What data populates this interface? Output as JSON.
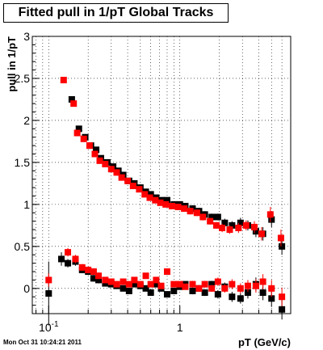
{
  "title": "Fitted pull in 1/pT  Global Tracks",
  "timestamp": "Mon Oct 31 10:24:21 2011",
  "chart_data": {
    "type": "scatter",
    "xlabel": "pT (GeV/c)",
    "ylabel": "pull in 1/pT",
    "xscale": "log",
    "xlim": [
      0.075,
      7.0
    ],
    "ylim": [
      -0.3,
      3.0
    ],
    "grid": true,
    "x_tick_labels": [
      {
        "value": 0.1,
        "base": "10",
        "exp": "-1"
      },
      {
        "value": 1,
        "base": "1",
        "exp": ""
      }
    ],
    "y_ticks": [
      0,
      0.5,
      1,
      1.5,
      2,
      2.5,
      3
    ],
    "y_tick_labels": [
      "0",
      "0.5",
      "1",
      "1.5",
      "2",
      "2.5",
      "3"
    ],
    "series": [
      {
        "color": "#000000",
        "sigma_points": [
          {
            "x": 0.15,
            "y": 2.25,
            "e": 0.03
          },
          {
            "x": 0.17,
            "y": 1.9,
            "e": 0.03
          },
          {
            "x": 0.19,
            "y": 1.8,
            "e": 0.03
          },
          {
            "x": 0.21,
            "y": 1.7,
            "e": 0.03
          },
          {
            "x": 0.23,
            "y": 1.65,
            "e": 0.03
          },
          {
            "x": 0.25,
            "y": 1.55,
            "e": 0.03
          },
          {
            "x": 0.28,
            "y": 1.5,
            "e": 0.03
          },
          {
            "x": 0.31,
            "y": 1.45,
            "e": 0.03
          },
          {
            "x": 0.34,
            "y": 1.4,
            "e": 0.03
          },
          {
            "x": 0.37,
            "y": 1.35,
            "e": 0.03
          },
          {
            "x": 0.41,
            "y": 1.28,
            "e": 0.03
          },
          {
            "x": 0.45,
            "y": 1.25,
            "e": 0.03
          },
          {
            "x": 0.5,
            "y": 1.2,
            "e": 0.03
          },
          {
            "x": 0.55,
            "y": 1.15,
            "e": 0.03
          },
          {
            "x": 0.6,
            "y": 1.12,
            "e": 0.03
          },
          {
            "x": 0.66,
            "y": 1.08,
            "e": 0.03
          },
          {
            "x": 0.72,
            "y": 1.05,
            "e": 0.03
          },
          {
            "x": 0.8,
            "y": 1.05,
            "e": 0.03
          },
          {
            "x": 0.9,
            "y": 1.0,
            "e": 0.03
          },
          {
            "x": 1.0,
            "y": 1.0,
            "e": 0.03
          },
          {
            "x": 1.1,
            "y": 0.98,
            "e": 0.03
          },
          {
            "x": 1.25,
            "y": 0.95,
            "e": 0.04
          },
          {
            "x": 1.4,
            "y": 0.92,
            "e": 0.04
          },
          {
            "x": 1.55,
            "y": 0.88,
            "e": 0.04
          },
          {
            "x": 1.75,
            "y": 0.85,
            "e": 0.04
          },
          {
            "x": 1.95,
            "y": 0.85,
            "e": 0.04
          },
          {
            "x": 2.2,
            "y": 0.78,
            "e": 0.05
          },
          {
            "x": 2.5,
            "y": 0.75,
            "e": 0.05
          },
          {
            "x": 2.9,
            "y": 0.78,
            "e": 0.06
          },
          {
            "x": 3.3,
            "y": 0.75,
            "e": 0.06
          },
          {
            "x": 3.8,
            "y": 0.68,
            "e": 0.07
          },
          {
            "x": 4.3,
            "y": 0.65,
            "e": 0.08
          },
          {
            "x": 5.0,
            "y": 0.82,
            "e": 0.09
          },
          {
            "x": 6.0,
            "y": 0.5,
            "e": 0.1
          }
        ],
        "mean_points": [
          {
            "x": 0.1,
            "y": -0.06,
            "e": 0.38
          },
          {
            "x": 0.125,
            "y": 0.35,
            "e": 0.08
          },
          {
            "x": 0.14,
            "y": 0.3,
            "e": 0.05
          },
          {
            "x": 0.16,
            "y": 0.32,
            "e": 0.05
          },
          {
            "x": 0.18,
            "y": 0.22,
            "e": 0.04
          },
          {
            "x": 0.2,
            "y": 0.2,
            "e": 0.04
          },
          {
            "x": 0.22,
            "y": 0.12,
            "e": 0.04
          },
          {
            "x": 0.24,
            "y": 0.1,
            "e": 0.04
          },
          {
            "x": 0.27,
            "y": 0.06,
            "e": 0.03
          },
          {
            "x": 0.3,
            "y": 0.05,
            "e": 0.03
          },
          {
            "x": 0.33,
            "y": 0.03,
            "e": 0.03
          },
          {
            "x": 0.37,
            "y": 0.0,
            "e": 0.03
          },
          {
            "x": 0.41,
            "y": -0.03,
            "e": 0.03
          },
          {
            "x": 0.45,
            "y": 0.05,
            "e": 0.03
          },
          {
            "x": 0.5,
            "y": 0.03,
            "e": 0.03
          },
          {
            "x": 0.55,
            "y": 0.0,
            "e": 0.03
          },
          {
            "x": 0.6,
            "y": -0.05,
            "e": 0.03
          },
          {
            "x": 0.66,
            "y": 0.05,
            "e": 0.03
          },
          {
            "x": 0.72,
            "y": 0.0,
            "e": 0.03
          },
          {
            "x": 0.8,
            "y": -0.07,
            "e": 0.03
          },
          {
            "x": 0.9,
            "y": -0.03,
            "e": 0.03
          },
          {
            "x": 1.0,
            "y": 0.02,
            "e": 0.03
          },
          {
            "x": 1.1,
            "y": 0.05,
            "e": 0.03
          },
          {
            "x": 1.25,
            "y": -0.03,
            "e": 0.04
          },
          {
            "x": 1.4,
            "y": 0.0,
            "e": 0.04
          },
          {
            "x": 1.55,
            "y": -0.05,
            "e": 0.04
          },
          {
            "x": 1.75,
            "y": 0.05,
            "e": 0.04
          },
          {
            "x": 1.95,
            "y": -0.07,
            "e": 0.05
          },
          {
            "x": 2.2,
            "y": 0.02,
            "e": 0.05
          },
          {
            "x": 2.5,
            "y": -0.1,
            "e": 0.06
          },
          {
            "x": 2.9,
            "y": -0.12,
            "e": 0.06
          },
          {
            "x": 3.3,
            "y": -0.05,
            "e": 0.07
          },
          {
            "x": 3.8,
            "y": 0.05,
            "e": 0.08
          },
          {
            "x": 4.3,
            "y": -0.05,
            "e": 0.09
          },
          {
            "x": 5.0,
            "y": -0.12,
            "e": 0.1
          },
          {
            "x": 6.0,
            "y": -0.25,
            "e": 0.12
          }
        ]
      },
      {
        "color": "#ff0000",
        "sigma_points": [
          {
            "x": 0.13,
            "y": 2.48,
            "e": 0.03
          },
          {
            "x": 0.155,
            "y": 2.2,
            "e": 0.03
          },
          {
            "x": 0.165,
            "y": 1.85,
            "e": 0.03
          },
          {
            "x": 0.185,
            "y": 1.78,
            "e": 0.03
          },
          {
            "x": 0.205,
            "y": 1.7,
            "e": 0.03
          },
          {
            "x": 0.225,
            "y": 1.6,
            "e": 0.03
          },
          {
            "x": 0.245,
            "y": 1.52,
            "e": 0.03
          },
          {
            "x": 0.27,
            "y": 1.48,
            "e": 0.03
          },
          {
            "x": 0.3,
            "y": 1.42,
            "e": 0.03
          },
          {
            "x": 0.33,
            "y": 1.38,
            "e": 0.03
          },
          {
            "x": 0.36,
            "y": 1.32,
            "e": 0.03
          },
          {
            "x": 0.4,
            "y": 1.28,
            "e": 0.03
          },
          {
            "x": 0.44,
            "y": 1.22,
            "e": 0.03
          },
          {
            "x": 0.49,
            "y": 1.18,
            "e": 0.03
          },
          {
            "x": 0.54,
            "y": 1.12,
            "e": 0.03
          },
          {
            "x": 0.59,
            "y": 1.08,
            "e": 0.03
          },
          {
            "x": 0.65,
            "y": 1.05,
            "e": 0.03
          },
          {
            "x": 0.71,
            "y": 1.02,
            "e": 0.03
          },
          {
            "x": 0.78,
            "y": 1.0,
            "e": 0.03
          },
          {
            "x": 0.87,
            "y": 0.98,
            "e": 0.03
          },
          {
            "x": 0.97,
            "y": 0.97,
            "e": 0.03
          },
          {
            "x": 1.08,
            "y": 0.95,
            "e": 0.03
          },
          {
            "x": 1.2,
            "y": 0.92,
            "e": 0.04
          },
          {
            "x": 1.35,
            "y": 0.9,
            "e": 0.04
          },
          {
            "x": 1.5,
            "y": 0.85,
            "e": 0.04
          },
          {
            "x": 1.7,
            "y": 0.8,
            "e": 0.04
          },
          {
            "x": 1.9,
            "y": 0.75,
            "e": 0.04
          },
          {
            "x": 2.1,
            "y": 0.72,
            "e": 0.05
          },
          {
            "x": 2.4,
            "y": 0.7,
            "e": 0.05
          },
          {
            "x": 2.8,
            "y": 0.72,
            "e": 0.06
          },
          {
            "x": 3.2,
            "y": 0.75,
            "e": 0.06
          },
          {
            "x": 3.7,
            "y": 0.73,
            "e": 0.07
          },
          {
            "x": 4.2,
            "y": 0.65,
            "e": 0.08
          },
          {
            "x": 4.9,
            "y": 0.88,
            "e": 0.09
          },
          {
            "x": 5.9,
            "y": 0.6,
            "e": 0.1
          }
        ],
        "mean_points": [
          {
            "x": 0.1,
            "y": 0.1,
            "e": 0.08
          },
          {
            "x": 0.14,
            "y": 0.43,
            "e": 0.05
          },
          {
            "x": 0.16,
            "y": 0.35,
            "e": 0.05
          },
          {
            "x": 0.18,
            "y": 0.25,
            "e": 0.04
          },
          {
            "x": 0.2,
            "y": 0.22,
            "e": 0.04
          },
          {
            "x": 0.22,
            "y": 0.2,
            "e": 0.04
          },
          {
            "x": 0.24,
            "y": 0.15,
            "e": 0.04
          },
          {
            "x": 0.27,
            "y": 0.1,
            "e": 0.03
          },
          {
            "x": 0.3,
            "y": 0.08,
            "e": 0.03
          },
          {
            "x": 0.33,
            "y": 0.05,
            "e": 0.03
          },
          {
            "x": 0.37,
            "y": 0.08,
            "e": 0.03
          },
          {
            "x": 0.41,
            "y": 0.05,
            "e": 0.03
          },
          {
            "x": 0.45,
            "y": 0.1,
            "e": 0.03
          },
          {
            "x": 0.5,
            "y": 0.05,
            "e": 0.03
          },
          {
            "x": 0.55,
            "y": 0.15,
            "e": 0.03
          },
          {
            "x": 0.6,
            "y": 0.05,
            "e": 0.03
          },
          {
            "x": 0.66,
            "y": 0.1,
            "e": 0.03
          },
          {
            "x": 0.72,
            "y": 0.03,
            "e": 0.03
          },
          {
            "x": 0.8,
            "y": 0.2,
            "e": 0.03
          },
          {
            "x": 0.9,
            "y": 0.05,
            "e": 0.03
          },
          {
            "x": 1.0,
            "y": 0.05,
            "e": 0.03
          },
          {
            "x": 1.1,
            "y": 0.02,
            "e": 0.03
          },
          {
            "x": 1.25,
            "y": 0.05,
            "e": 0.04
          },
          {
            "x": 1.4,
            "y": 0.0,
            "e": 0.04
          },
          {
            "x": 1.55,
            "y": 0.05,
            "e": 0.04
          },
          {
            "x": 1.75,
            "y": 0.0,
            "e": 0.04
          },
          {
            "x": 1.95,
            "y": 0.08,
            "e": 0.05
          },
          {
            "x": 2.2,
            "y": 0.0,
            "e": 0.05
          },
          {
            "x": 2.5,
            "y": 0.05,
            "e": 0.06
          },
          {
            "x": 2.9,
            "y": 0.0,
            "e": 0.06
          },
          {
            "x": 3.3,
            "y": 0.03,
            "e": 0.07
          },
          {
            "x": 3.8,
            "y": 0.03,
            "e": 0.08
          },
          {
            "x": 4.3,
            "y": 0.08,
            "e": 0.09
          },
          {
            "x": 5.0,
            "y": 0.0,
            "e": 0.1
          },
          {
            "x": 6.0,
            "y": -0.1,
            "e": 0.11
          }
        ]
      }
    ]
  }
}
